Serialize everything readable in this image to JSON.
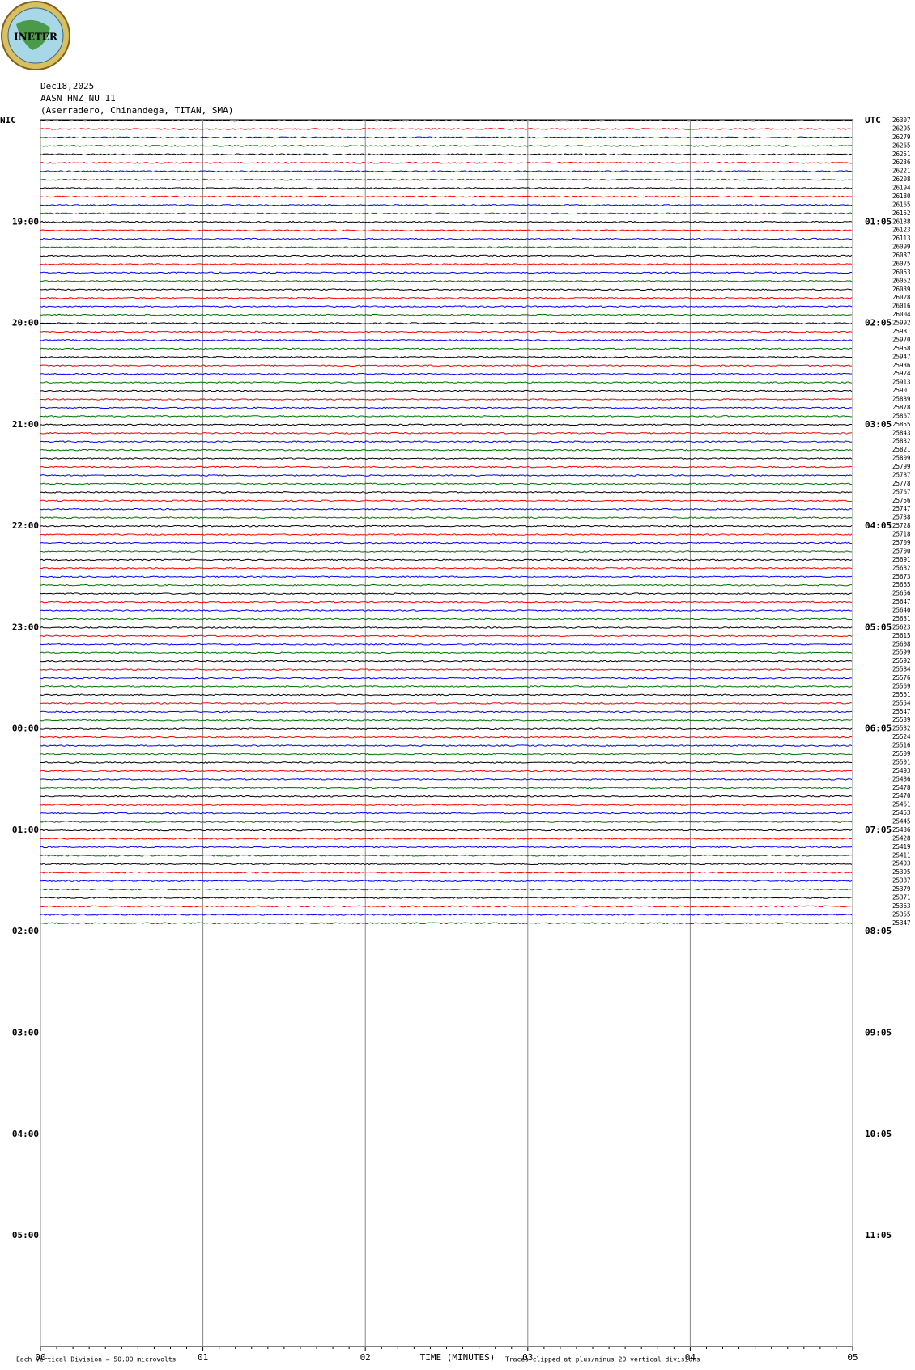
{
  "chart_data": {
    "type": "helicorder",
    "logo": "INETER",
    "date": "Dec18,2025",
    "station": "AASN HNZ NU 11",
    "location": "(Aserradero, Chinandega, TITAN, SMA)",
    "left_labels": [
      "NIC",
      "19:00",
      "20:00",
      "21:00",
      "22:00",
      "23:00",
      "00:00",
      "01:00",
      "02:00",
      "03:00",
      "04:00",
      "05:00"
    ],
    "right_labels": [
      "UTC",
      "01:05",
      "02:05",
      "03:05",
      "04:05",
      "05:05",
      "06:05",
      "07:05",
      "08:05",
      "09:05",
      "10:05",
      "11:05"
    ],
    "trace_labels": [
      26307,
      26295,
      26279,
      26265,
      26251,
      26236,
      26221,
      26208,
      26194,
      26180,
      26165,
      26152,
      26138,
      26123,
      26113,
      26099,
      26087,
      26075,
      26063,
      26052,
      26039,
      26028,
      26016,
      26004,
      25992,
      25981,
      25970,
      25958,
      25947,
      25936,
      25924,
      25913,
      25901,
      25889,
      25878,
      25867,
      25855,
      25843,
      25832,
      25821,
      25809,
      25799,
      25787,
      25778,
      25767,
      25756,
      25747,
      25738,
      25728,
      25718,
      25709,
      25700,
      25691,
      25682,
      25673,
      25665,
      25656,
      25647,
      25640,
      25631,
      25623,
      25615,
      25608,
      25599,
      25592,
      25584,
      25576,
      25569,
      25561,
      25554,
      25547,
      25539,
      25532,
      25524,
      25516,
      25509,
      25501,
      25493,
      25486,
      25478,
      25470,
      25461,
      25453,
      25445,
      25436,
      25428,
      25419,
      25411,
      25403,
      25395,
      25387,
      25379,
      25371,
      25363,
      25355,
      25347
    ],
    "trace_colors": [
      "#000000",
      "#ff0000",
      "#0000ff",
      "#007000"
    ],
    "xlim": [
      0,
      5
    ],
    "xticks": [
      {
        "value": 0,
        "label": "00"
      },
      {
        "value": 1,
        "label": "01"
      },
      {
        "value": 2,
        "label": "02"
      },
      {
        "value": 3,
        "label": "03"
      },
      {
        "value": 4,
        "label": "04"
      },
      {
        "value": 5,
        "label": "05"
      }
    ],
    "xlabel": "TIME (MINUTES)",
    "scale_note": "Each Vertical Division =   50.00 microvolts",
    "clip_note": "Traces clipped at plus/minus 20 vertical divisions"
  }
}
